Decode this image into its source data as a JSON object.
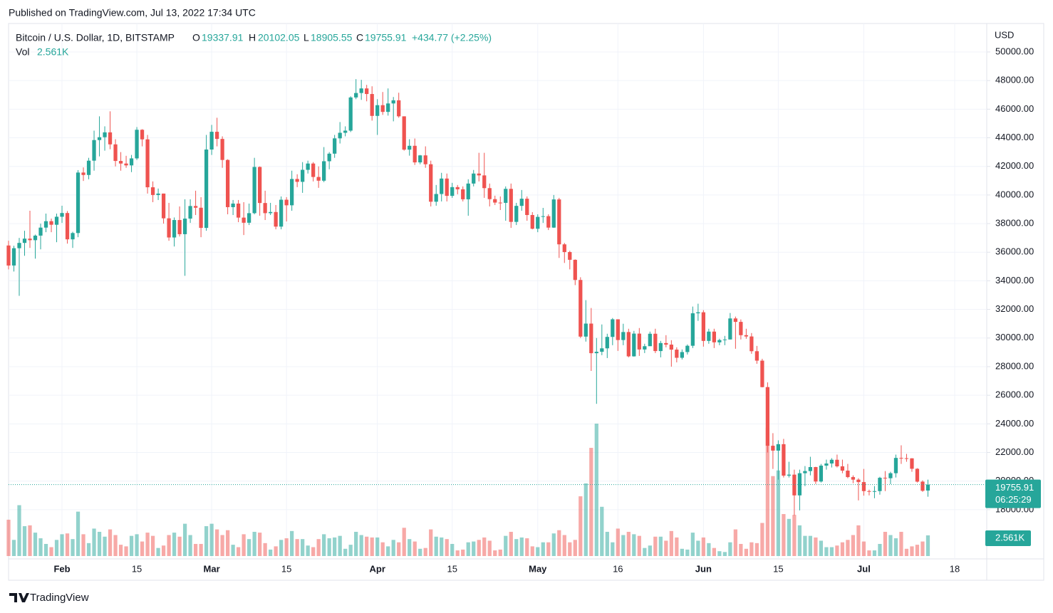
{
  "header": {
    "published": "Published on TradingView.com, Jul 13, 2022 17:34 UTC"
  },
  "footer": {
    "brand": "TradingView"
  },
  "chart_data": {
    "type": "candlestick",
    "symbol": "Bitcoin / U.S. Dollar, 1D, BITSTAMP",
    "open_label": "O",
    "high_label": "H",
    "low_label": "L",
    "close_label": "C",
    "change": "+434.77 (+2.25%)",
    "volume_title": "Vol",
    "volume_last_label": "2.561K",
    "currency": "USD",
    "countdown": "06:25:29",
    "up_color": "#26a69a",
    "down_color": "#ef5350",
    "grid": true,
    "xlim": [
      "2022-01-22",
      "2022-07-24"
    ],
    "xticks": [
      {
        "value": "2022-02-01",
        "label": "Feb"
      },
      {
        "value": "2022-02-15",
        "label": "15"
      },
      {
        "value": "2022-03-01",
        "label": "Mar"
      },
      {
        "value": "2022-03-15",
        "label": "15"
      },
      {
        "value": "2022-04-01",
        "label": "Apr"
      },
      {
        "value": "2022-04-15",
        "label": "15"
      },
      {
        "value": "2022-05-01",
        "label": "May"
      },
      {
        "value": "2022-05-16",
        "label": "16"
      },
      {
        "value": "2022-06-01",
        "label": "Jun"
      },
      {
        "value": "2022-06-15",
        "label": "15"
      },
      {
        "value": "2022-07-01",
        "label": "Jul"
      },
      {
        "value": "2022-07-18",
        "label": "18"
      }
    ],
    "ylim": [
      14560,
      51990
    ],
    "yticks": [
      {
        "value": 18000,
        "label": "18000.00"
      },
      {
        "value": 20000,
        "label": "20000.00"
      },
      {
        "value": 22000,
        "label": "22000.00"
      },
      {
        "value": 24000,
        "label": "24000.00"
      },
      {
        "value": 26000,
        "label": "26000.00"
      },
      {
        "value": 28000,
        "label": "28000.00"
      },
      {
        "value": 30000,
        "label": "30000.00"
      },
      {
        "value": 32000,
        "label": "32000.00"
      },
      {
        "value": 34000,
        "label": "34000.00"
      },
      {
        "value": 36000,
        "label": "36000.00"
      },
      {
        "value": 38000,
        "label": "38000.00"
      },
      {
        "value": 40000,
        "label": "40000.00"
      },
      {
        "value": 42000,
        "label": "42000.00"
      },
      {
        "value": 44000,
        "label": "44000.00"
      },
      {
        "value": 46000,
        "label": "46000.00"
      },
      {
        "value": 48000,
        "label": "48000.00"
      },
      {
        "value": 50000,
        "label": "50000.00"
      }
    ],
    "x": [
      "2022-01-22",
      "2022-01-23",
      "2022-01-24",
      "2022-01-25",
      "2022-01-26",
      "2022-01-27",
      "2022-01-28",
      "2022-01-29",
      "2022-01-30",
      "2022-01-31",
      "2022-02-01",
      "2022-02-02",
      "2022-02-03",
      "2022-02-04",
      "2022-02-05",
      "2022-02-06",
      "2022-02-07",
      "2022-02-08",
      "2022-02-09",
      "2022-02-10",
      "2022-02-11",
      "2022-02-12",
      "2022-02-13",
      "2022-02-14",
      "2022-02-15",
      "2022-02-16",
      "2022-02-17",
      "2022-02-18",
      "2022-02-19",
      "2022-02-20",
      "2022-02-21",
      "2022-02-22",
      "2022-02-23",
      "2022-02-24",
      "2022-02-25",
      "2022-02-26",
      "2022-02-27",
      "2022-02-28",
      "2022-03-01",
      "2022-03-02",
      "2022-03-03",
      "2022-03-04",
      "2022-03-05",
      "2022-03-06",
      "2022-03-07",
      "2022-03-08",
      "2022-03-09",
      "2022-03-10",
      "2022-03-11",
      "2022-03-12",
      "2022-03-13",
      "2022-03-14",
      "2022-03-15",
      "2022-03-16",
      "2022-03-17",
      "2022-03-18",
      "2022-03-19",
      "2022-03-20",
      "2022-03-21",
      "2022-03-22",
      "2022-03-23",
      "2022-03-24",
      "2022-03-25",
      "2022-03-26",
      "2022-03-27",
      "2022-03-28",
      "2022-03-29",
      "2022-03-30",
      "2022-03-31",
      "2022-04-01",
      "2022-04-02",
      "2022-04-03",
      "2022-04-04",
      "2022-04-05",
      "2022-04-06",
      "2022-04-07",
      "2022-04-08",
      "2022-04-09",
      "2022-04-10",
      "2022-04-11",
      "2022-04-12",
      "2022-04-13",
      "2022-04-14",
      "2022-04-15",
      "2022-04-16",
      "2022-04-17",
      "2022-04-18",
      "2022-04-19",
      "2022-04-20",
      "2022-04-21",
      "2022-04-22",
      "2022-04-23",
      "2022-04-24",
      "2022-04-25",
      "2022-04-26",
      "2022-04-27",
      "2022-04-28",
      "2022-04-29",
      "2022-04-30",
      "2022-05-01",
      "2022-05-02",
      "2022-05-03",
      "2022-05-04",
      "2022-05-05",
      "2022-05-06",
      "2022-05-07",
      "2022-05-08",
      "2022-05-09",
      "2022-05-10",
      "2022-05-11",
      "2022-05-12",
      "2022-05-13",
      "2022-05-14",
      "2022-05-15",
      "2022-05-16",
      "2022-05-17",
      "2022-05-18",
      "2022-05-19",
      "2022-05-20",
      "2022-05-21",
      "2022-05-22",
      "2022-05-23",
      "2022-05-24",
      "2022-05-25",
      "2022-05-26",
      "2022-05-27",
      "2022-05-28",
      "2022-05-29",
      "2022-05-30",
      "2022-05-31",
      "2022-06-01",
      "2022-06-02",
      "2022-06-03",
      "2022-06-04",
      "2022-06-05",
      "2022-06-06",
      "2022-06-07",
      "2022-06-08",
      "2022-06-09",
      "2022-06-10",
      "2022-06-11",
      "2022-06-12",
      "2022-06-13",
      "2022-06-14",
      "2022-06-15",
      "2022-06-16",
      "2022-06-17",
      "2022-06-18",
      "2022-06-19",
      "2022-06-20",
      "2022-06-21",
      "2022-06-22",
      "2022-06-23",
      "2022-06-24",
      "2022-06-25",
      "2022-06-26",
      "2022-06-27",
      "2022-06-28",
      "2022-06-29",
      "2022-06-30",
      "2022-07-01",
      "2022-07-02",
      "2022-07-03",
      "2022-07-04",
      "2022-07-05",
      "2022-07-06",
      "2022-07-07",
      "2022-07-08",
      "2022-07-09",
      "2022-07-10",
      "2022-07-11",
      "2022-07-12",
      "2022-07-13"
    ],
    "open": [
      36470,
      35070,
      36280,
      36650,
      36950,
      36840,
      37160,
      37720,
      38170,
      37920,
      38480,
      38740,
      36900,
      37340,
      41570,
      41400,
      42400,
      43840,
      44040,
      44380,
      43540,
      42380,
      42200,
      42070,
      42560,
      44560,
      43890,
      40540,
      40000,
      40100,
      38370,
      37030,
      38250,
      37260,
      38350,
      39230,
      39110,
      37700,
      43180,
      44420,
      43920,
      42450,
      39150,
      39400,
      38420,
      38060,
      38730,
      41960,
      39440,
      38730,
      38810,
      37790,
      39670,
      39280,
      41120,
      40920,
      41760,
      42200,
      41260,
      41000,
      42360,
      42890,
      43960,
      44350,
      44500,
      46820,
      47130,
      47450,
      47060,
      45530,
      46280,
      45810,
      46400,
      46620,
      45500,
      43170,
      43440,
      42280,
      42770,
      42150,
      39530,
      40070,
      41150,
      39940,
      40550,
      40400,
      39700,
      40800,
      41500,
      41370,
      40480,
      39710,
      39470,
      39450,
      40430,
      38120,
      39240,
      39740,
      38600,
      37640,
      38470,
      38520,
      37720,
      39690,
      36550,
      36010,
      35470,
      34060,
      30100,
      31010,
      28940,
      29040,
      29280,
      30080,
      31310,
      29860,
      30420,
      28720,
      30310,
      29200,
      29430,
      30300,
      29090,
      29650,
      29540,
      29190,
      28620,
      29020,
      29460,
      31730,
      31800,
      29800,
      30450,
      29700,
      29860,
      29900,
      31370,
      31130,
      30200,
      30110,
      29080,
      28420,
      26570,
      22470,
      22130,
      22580,
      20380,
      20450,
      19000,
      20550,
      20700,
      20980,
      19970,
      21080,
      21230,
      21490,
      21030,
      20730,
      20280,
      20100,
      19930,
      19300,
      19250,
      19300,
      20230,
      20200,
      20550,
      21620,
      21600,
      21590,
      20860,
      19960,
      19337.91
    ],
    "high": [
      36800,
      36450,
      37000,
      37500,
      38900,
      37230,
      38000,
      38700,
      38350,
      38700,
      39250,
      38880,
      37430,
      41740,
      41930,
      42600,
      44500,
      45500,
      44800,
      45850,
      43900,
      43000,
      42740,
      42800,
      44750,
      44600,
      44200,
      40950,
      40450,
      40100,
      39450,
      38430,
      39200,
      39700,
      39700,
      40300,
      39850,
      44200,
      44900,
      45400,
      44100,
      42500,
      39650,
      39650,
      39500,
      39400,
      42600,
      42000,
      40300,
      39450,
      39300,
      39900,
      39850,
      41700,
      41450,
      42300,
      42400,
      42300,
      42000,
      43350,
      43000,
      44200,
      45100,
      44800,
      46900,
      48100,
      48050,
      47700,
      47600,
      46700,
      47200,
      47450,
      46850,
      47150,
      45500,
      43900,
      43950,
      42800,
      43400,
      42400,
      40700,
      41550,
      41500,
      40850,
      40700,
      40600,
      41100,
      41750,
      42950,
      42950,
      40800,
      39950,
      39900,
      40600,
      40800,
      39450,
      40350,
      39900,
      38800,
      38650,
      39100,
      38650,
      40000,
      39800,
      36650,
      36100,
      35500,
      34250,
      32650,
      32100,
      30000,
      30950,
      30300,
      31400,
      31310,
      31000,
      30650,
      30500,
      30700,
      29600,
      30450,
      30650,
      29800,
      30200,
      29850,
      29350,
      29200,
      29550,
      32200,
      32400,
      31950,
      30650,
      30650,
      29950,
      30150,
      31750,
      31500,
      31300,
      30650,
      30350,
      29450,
      28550,
      26900,
      23350,
      22850,
      22950,
      21350,
      20800,
      20800,
      21050,
      21700,
      21000,
      21200,
      21500,
      21600,
      21850,
      21500,
      21200,
      20400,
      20200,
      20850,
      19400,
      19650,
      20300,
      20700,
      20650,
      21850,
      22500,
      21900,
      21600,
      20900,
      20050,
      20102.05
    ],
    "low": [
      34800,
      34650,
      32950,
      35750,
      36300,
      35550,
      36200,
      37400,
      37400,
      36700,
      38050,
      36600,
      36300,
      37050,
      40980,
      41100,
      41700,
      42700,
      43100,
      43200,
      42000,
      41700,
      41900,
      41600,
      42450,
      43400,
      40100,
      39500,
      39650,
      38000,
      36800,
      36400,
      37100,
      34350,
      38050,
      38600,
      37050,
      37500,
      42800,
      43400,
      41900,
      38650,
      38600,
      38100,
      37200,
      37900,
      38650,
      38550,
      38250,
      38600,
      37600,
      37600,
      38150,
      38900,
      40550,
      40150,
      41500,
      40950,
      40500,
      40900,
      41800,
      42600,
      43600,
      44100,
      44400,
      46700,
      46650,
      46550,
      45200,
      44200,
      45600,
      45550,
      45150,
      45400,
      43100,
      42750,
      42100,
      42150,
      41900,
      39200,
      39250,
      39550,
      39550,
      39800,
      40050,
      39550,
      38550,
      40600,
      40950,
      39800,
      39200,
      39300,
      38950,
      38200,
      37700,
      37900,
      38900,
      38200,
      37600,
      37400,
      38050,
      37550,
      37700,
      35600,
      35250,
      34800,
      33700,
      30000,
      29750,
      27700,
      25400,
      28800,
      28600,
      29500,
      29100,
      29500,
      28650,
      28700,
      28750,
      28950,
      29450,
      28950,
      28650,
      29350,
      28000,
      28300,
      28500,
      28850,
      29300,
      31200,
      29400,
      29600,
      29300,
      29500,
      29500,
      29900,
      29250,
      29900,
      29950,
      28900,
      28200,
      26550,
      22000,
      20850,
      20100,
      20250,
      20250,
      17600,
      17950,
      19650,
      20400,
      19800,
      19900,
      20800,
      20950,
      20950,
      20550,
      20200,
      19850,
      18650,
      18980,
      19000,
      18800,
      19050,
      19300,
      19780,
      20250,
      21200,
      21350,
      20650,
      19900,
      19250,
      18905.55
    ],
    "close": [
      35070,
      36280,
      36650,
      36950,
      36840,
      37160,
      37720,
      38170,
      37920,
      38480,
      38740,
      36900,
      37340,
      41570,
      41400,
      42400,
      43840,
      44040,
      44380,
      43540,
      42380,
      42200,
      42070,
      42560,
      44560,
      43890,
      40540,
      40000,
      40100,
      38370,
      37030,
      38250,
      37260,
      38350,
      39230,
      39110,
      37700,
      43180,
      44420,
      43920,
      42450,
      39150,
      39400,
      38420,
      38060,
      38730,
      41960,
      39440,
      38730,
      38810,
      37790,
      39670,
      39280,
      41120,
      40920,
      41760,
      42200,
      41260,
      41000,
      42360,
      42890,
      43960,
      44350,
      44500,
      46820,
      47130,
      47450,
      47060,
      45530,
      46280,
      45810,
      46400,
      46620,
      45500,
      43170,
      43440,
      42280,
      42770,
      42150,
      39530,
      40070,
      41150,
      39940,
      40550,
      40400,
      39700,
      40800,
      41500,
      41370,
      40480,
      39710,
      39470,
      39450,
      40430,
      38120,
      39240,
      39740,
      38600,
      37640,
      38470,
      38520,
      37720,
      39690,
      36550,
      36010,
      35470,
      34060,
      30100,
      31010,
      28940,
      29040,
      29280,
      30080,
      31310,
      29860,
      30420,
      28720,
      30310,
      29200,
      29430,
      30300,
      29090,
      29650,
      29540,
      29190,
      28620,
      29020,
      29460,
      31730,
      31800,
      29800,
      30450,
      29700,
      29860,
      29900,
      31370,
      31130,
      30200,
      30110,
      29080,
      28420,
      26570,
      22470,
      22130,
      22580,
      20380,
      20450,
      19000,
      20550,
      20700,
      20980,
      19970,
      21080,
      21230,
      21490,
      21030,
      20730,
      20280,
      20100,
      19930,
      19300,
      19250,
      19300,
      20230,
      20200,
      20550,
      21620,
      21600,
      21590,
      20860,
      19960,
      19321.14,
      19755.91
    ],
    "volume": [
      4500,
      2000,
      6300,
      3700,
      3800,
      2900,
      2200,
      1500,
      1100,
      2000,
      2700,
      2800,
      2100,
      5500,
      2700,
      1600,
      3400,
      3000,
      2400,
      3300,
      2600,
      1400,
      1200,
      2500,
      2700,
      1800,
      2900,
      2500,
      1000,
      1300,
      2600,
      2900,
      2400,
      4000,
      2600,
      1500,
      1500,
      3700,
      4000,
      3300,
      2600,
      3200,
      1400,
      1100,
      2700,
      2100,
      3000,
      2900,
      1600,
      800,
      1200,
      2000,
      2200,
      3100,
      2100,
      2100,
      1300,
      1100,
      2100,
      2700,
      2200,
      2300,
      2500,
      900,
      1400,
      3000,
      2600,
      2400,
      2300,
      2300,
      1700,
      1200,
      2000,
      1700,
      3500,
      2100,
      1800,
      900,
      1000,
      3300,
      2400,
      2300,
      2100,
      1500,
      700,
      800,
      1700,
      1800,
      2000,
      2300,
      1900,
      700,
      800,
      2500,
      3000,
      2100,
      2300,
      2200,
      1200,
      1100,
      1700,
      1700,
      2800,
      3200,
      2600,
      1700,
      2000,
      7400,
      9000,
      13400,
      16400,
      6100,
      3000,
      1700,
      3400,
      2600,
      3000,
      2700,
      2500,
      1000,
      1300,
      2400,
      2400,
      1900,
      3100,
      2300,
      900,
      800,
      2900,
      1900,
      2300,
      1600,
      1000,
      600,
      500,
      1700,
      3300,
      1500,
      900,
      1700,
      1600,
      4100,
      15900,
      9900,
      10600,
      5200,
      4600,
      5100,
      3800,
      2500,
      2500,
      2300,
      1900,
      1100,
      1100,
      1300,
      1700,
      2000,
      2600,
      3800,
      1800,
      700,
      700,
      1500,
      3000,
      2600,
      2200,
      3000,
      900,
      1200,
      1400,
      1800,
      2561
    ]
  }
}
